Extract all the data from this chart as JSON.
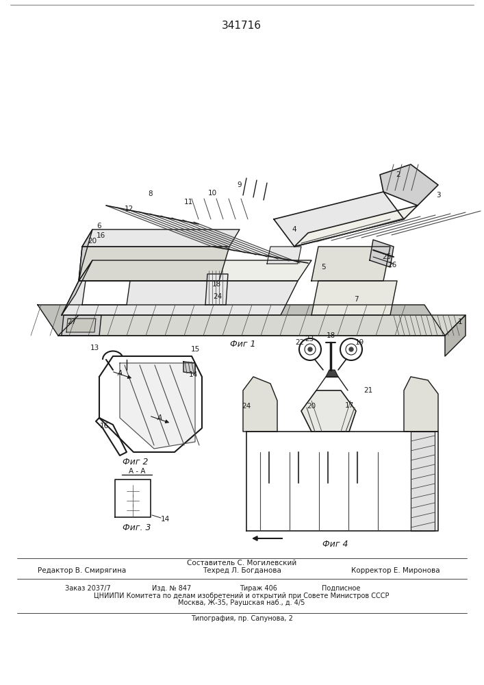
{
  "title": "341716",
  "bg_color": "#ffffff",
  "fig1_caption": "Фиг 1",
  "fig2_caption": "Фиг 2",
  "fig3_caption": "Фиг. 3",
  "fig4_caption": "Фиг 4",
  "aa_label": "A - A",
  "footer_composer": "Составитель С. Могилевский",
  "footer_editor": "Редактор В. Смирягина",
  "footer_tech": "Техред Л. Богданова",
  "footer_corrector": "Корректор Е. Миронова",
  "footer_line1a": "Заказ 2037/7",
  "footer_line1b": "Изд. № 847",
  "footer_line1c": "Тираж 406",
  "footer_line1d": "Подписное",
  "footer_line2": "ЦНИИПИ Комитета по делам изобретений и открытий при Совете Министров СССР",
  "footer_line3": "Москва, Ж-35, Раушская наб., д. 4/5",
  "footer_line4": "Типография, пр. Сапунова, 2",
  "lc": "#1a1a1a",
  "dg": "#444444",
  "lg": "#888888",
  "fill_light": "#e8e8e8",
  "fill_mid": "#d0d0d0",
  "fill_dark": "#b0b0b0",
  "fill_white": "#ffffff"
}
